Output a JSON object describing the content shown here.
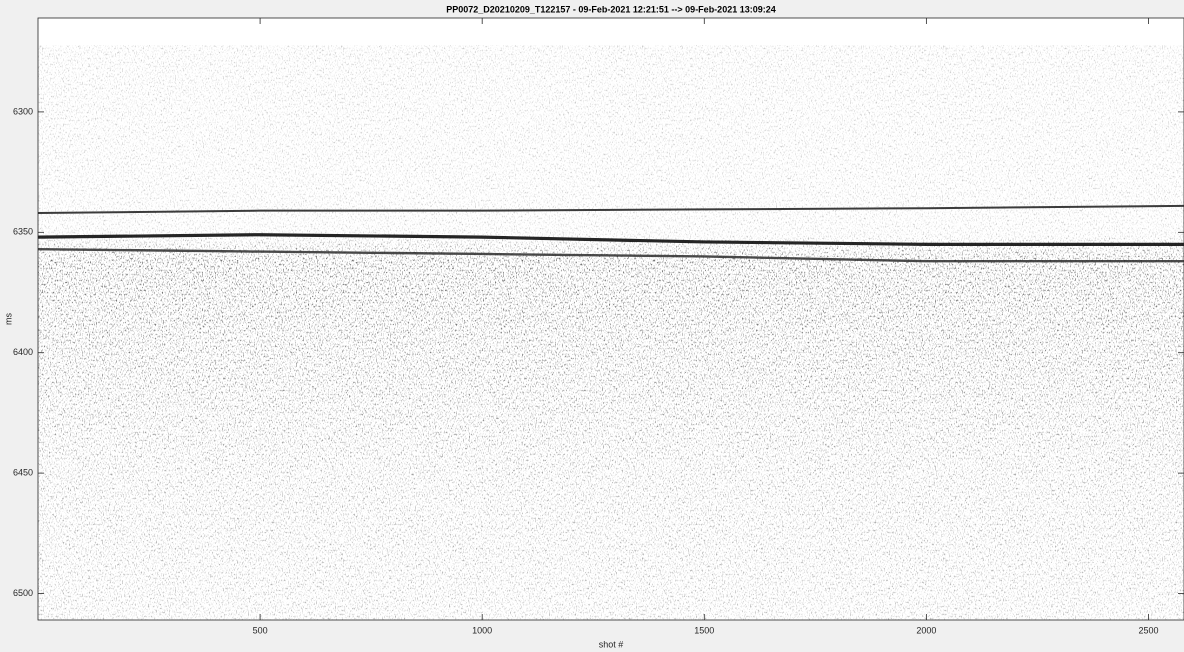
{
  "chart_data": {
    "type": "line",
    "title": "PP0072_D20210209_T122157 - 09-Feb-2021 12:21:51 --> 09-Feb-2021 13:09:24",
    "xlabel": "shot #",
    "ylabel": "ms",
    "x": [
      0,
      500,
      1000,
      1500,
      2000,
      2580
    ],
    "series": [
      {
        "color": "#1a1a1a",
        "values": [
          6342,
          6341,
          6341,
          6340.5,
          6340,
          6339
        ]
      },
      {
        "color": "#000000",
        "values": [
          6352,
          6351,
          6352,
          6354,
          6355,
          6355
        ]
      },
      {
        "color": "#2a2a2a",
        "values": [
          6357,
          6358,
          6359,
          6360,
          6362,
          6362
        ]
      }
    ],
    "xlim": [
      0,
      2580
    ],
    "ylim": [
      6261,
      6511
    ],
    "y_reversed": true,
    "xticks": [
      500,
      1000,
      1500,
      2000,
      2500
    ],
    "yticks": [
      6300,
      6350,
      6400,
      6450,
      6500
    ]
  }
}
